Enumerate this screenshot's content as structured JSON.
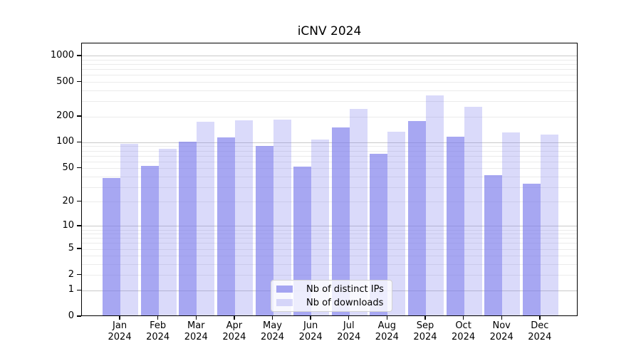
{
  "title": "iCNV 2024",
  "colors": {
    "background": "#ffffff",
    "bar_dark": "rgba(121,121,236,0.66)",
    "bar_light": "rgba(121,121,236,0.28)",
    "bar_dark_flat": "#a9a9f2",
    "bar_light_flat": "#dcdcf9",
    "grid_major": "#c9c9c9",
    "grid_minor": "#ebebeb",
    "spine": "#000000"
  },
  "legend": {
    "items": [
      {
        "label": "Nb of distinct IPs",
        "swatch": "bar_dark"
      },
      {
        "label": "Nb of downloads",
        "swatch": "bar_light"
      }
    ]
  },
  "chart_data": {
    "type": "bar",
    "title": "iCNV 2024",
    "categories": [
      "Jan 2024",
      "Feb 2024",
      "Mar 2024",
      "Apr 2024",
      "May 2024",
      "Jun 2024",
      "Jul 2024",
      "Aug 2024",
      "Sep 2024",
      "Oct 2024",
      "Nov 2024",
      "Dec 2024"
    ],
    "series": [
      {
        "name": "Nb of distinct IPs",
        "values": [
          37,
          52,
          100,
          111,
          88,
          51,
          145,
          71,
          172,
          113,
          40,
          32
        ]
      },
      {
        "name": "Nb of downloads",
        "values": [
          94,
          82,
          170,
          175,
          178,
          105,
          237,
          130,
          340,
          251,
          127,
          120
        ]
      }
    ],
    "xlabel": "",
    "ylabel": "",
    "yscale": "log1p",
    "yticks": [
      0,
      1,
      2,
      5,
      10,
      20,
      50,
      100,
      200,
      500,
      1000
    ],
    "ylim": [
      0,
      1400
    ],
    "grid": true,
    "legend_position": "lower center"
  }
}
